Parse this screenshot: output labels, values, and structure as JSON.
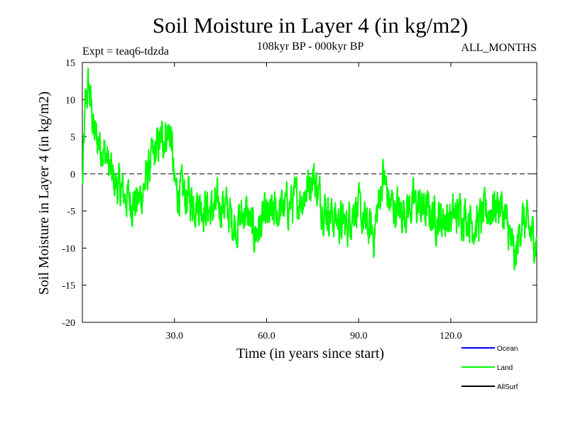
{
  "chart_data": {
    "type": "line",
    "title": "Soil Moisture in Layer 4 (in kg/m2)",
    "subtitle": "108kyr BP - 000kyr BP",
    "experiment_label": "Expt = teaq6-tdzda",
    "period_label": "ALL_MONTHS",
    "xlabel": "Time (in years since start)",
    "ylabel": "Soil Moisture in Layer 4 (in kg/m2)",
    "xlim": [
      0,
      148
    ],
    "ylim": [
      -20,
      15
    ],
    "x_ticks": [
      30,
      60,
      90,
      120
    ],
    "x_tick_labels": [
      "30.0",
      "60.0",
      "90.0",
      "120.0"
    ],
    "y_ticks": [
      15,
      10,
      5,
      0,
      -5,
      -10,
      -15,
      -20
    ],
    "y_tick_labels": [
      "15",
      "10",
      "5",
      "0",
      "-5",
      "-10",
      "-15",
      "-20"
    ],
    "reference_line": 0,
    "series": [
      {
        "name": "Ocean",
        "color": "#0000ff",
        "values": []
      },
      {
        "name": "Land",
        "color": "#00ff00",
        "x_step": 0.1,
        "x_start": 0,
        "trend_points": [
          [
            0,
            -2
          ],
          [
            1,
            9
          ],
          [
            2,
            12
          ],
          [
            4,
            5
          ],
          [
            6,
            4
          ],
          [
            8,
            2
          ],
          [
            10,
            -1
          ],
          [
            14,
            -3
          ],
          [
            18,
            -4
          ],
          [
            20,
            -2
          ],
          [
            22,
            1
          ],
          [
            25,
            4
          ],
          [
            28,
            6
          ],
          [
            29,
            5
          ],
          [
            30,
            -2
          ],
          [
            34,
            -3
          ],
          [
            38,
            -4
          ],
          [
            42,
            -5
          ],
          [
            46,
            -4
          ],
          [
            50,
            -7
          ],
          [
            53,
            -5
          ],
          [
            56,
            -8
          ],
          [
            60,
            -6
          ],
          [
            64,
            -5
          ],
          [
            68,
            -4
          ],
          [
            72,
            -3
          ],
          [
            75,
            0
          ],
          [
            78,
            -4
          ],
          [
            82,
            -6
          ],
          [
            86,
            -7
          ],
          [
            89,
            -4
          ],
          [
            92,
            -7
          ],
          [
            95,
            -8
          ],
          [
            98,
            0
          ],
          [
            100,
            -4
          ],
          [
            104,
            -5
          ],
          [
            108,
            -4
          ],
          [
            112,
            -5
          ],
          [
            116,
            -6
          ],
          [
            120,
            -6
          ],
          [
            124,
            -5
          ],
          [
            128,
            -7
          ],
          [
            132,
            -5
          ],
          [
            136,
            -4
          ],
          [
            139,
            -8
          ],
          [
            141,
            -12
          ],
          [
            143,
            -6
          ],
          [
            146,
            -8
          ],
          [
            148,
            -9
          ]
        ],
        "noise_amplitude": 3.2,
        "sample_count": 1480
      },
      {
        "name": "AllSurf",
        "color": "#000000",
        "values": []
      }
    ],
    "legend_position": "bottom-right"
  }
}
